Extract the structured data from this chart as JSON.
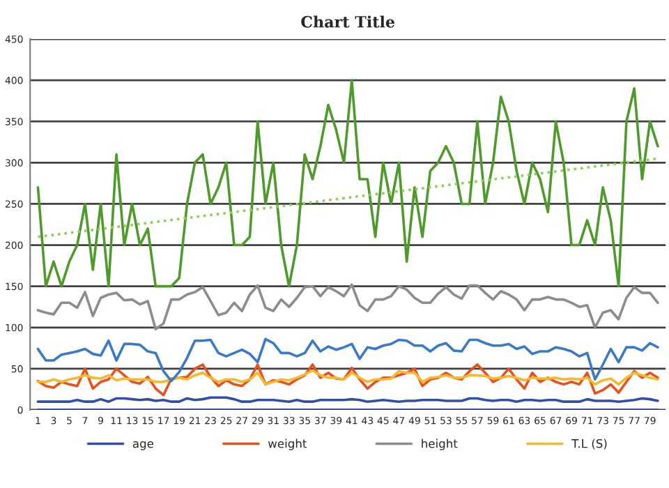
{
  "chart_data": {
    "type": "line",
    "title": "Chart Title",
    "x": [
      1,
      2,
      3,
      4,
      5,
      6,
      7,
      8,
      9,
      10,
      11,
      12,
      13,
      14,
      15,
      16,
      17,
      18,
      19,
      20,
      21,
      22,
      23,
      24,
      25,
      26,
      27,
      28,
      29,
      30,
      31,
      32,
      33,
      34,
      35,
      36,
      37,
      38,
      39,
      40,
      41,
      42,
      43,
      44,
      45,
      46,
      47,
      48,
      49,
      50,
      51,
      52,
      53,
      54,
      55,
      56,
      57,
      58,
      59,
      60,
      61,
      62,
      63,
      64,
      65,
      66,
      67,
      68,
      69,
      70,
      71,
      72,
      73,
      74,
      75,
      76,
      77,
      78,
      79,
      80
    ],
    "xlim": [
      0,
      81
    ],
    "xticks": [
      1,
      3,
      5,
      7,
      9,
      11,
      13,
      15,
      17,
      19,
      21,
      23,
      25,
      27,
      29,
      31,
      33,
      35,
      37,
      39,
      41,
      43,
      45,
      47,
      49,
      51,
      53,
      55,
      57,
      59,
      61,
      63,
      65,
      67,
      69,
      71,
      73,
      75,
      77,
      79
    ],
    "ylim": [
      0,
      450
    ],
    "yticks": [
      0,
      50,
      100,
      150,
      200,
      250,
      300,
      350,
      400,
      450
    ],
    "grid": "y",
    "legend": "bottom",
    "line_style": "solid",
    "marker": "none",
    "series": [
      {
        "name": "age",
        "color": "#2f4fa8",
        "values": [
          10,
          10,
          10,
          10,
          10,
          12,
          10,
          10,
          13,
          10,
          14,
          14,
          13,
          12,
          13,
          11,
          12,
          10,
          10,
          14,
          12,
          13,
          15,
          15,
          15,
          13,
          10,
          10,
          12,
          12,
          12,
          11,
          10,
          12,
          10,
          10,
          12,
          12,
          12,
          12,
          13,
          12,
          10,
          11,
          12,
          11,
          10,
          11,
          11,
          12,
          12,
          12,
          11,
          11,
          11,
          14,
          14,
          12,
          11,
          12,
          12,
          10,
          12,
          12,
          11,
          12,
          12,
          10,
          10,
          10,
          13,
          11,
          11,
          11,
          10,
          11,
          12,
          14,
          13,
          11
        ]
      },
      {
        "name": "weight",
        "color": "#e8501e",
        "values": [
          35,
          29,
          27,
          34,
          31,
          29,
          50,
          26,
          34,
          37,
          50,
          42,
          34,
          32,
          40,
          26,
          18,
          38,
          39,
          40,
          50,
          55,
          40,
          29,
          36,
          31,
          29,
          37,
          55,
          31,
          36,
          34,
          31,
          37,
          42,
          55,
          39,
          45,
          38,
          37,
          51,
          37,
          26,
          34,
          39,
          39,
          42,
          45,
          50,
          29,
          37,
          39,
          45,
          39,
          37,
          47,
          55,
          45,
          34,
          39,
          50,
          37,
          26,
          45,
          34,
          39,
          34,
          31,
          34,
          31,
          45,
          20,
          24,
          31,
          21,
          34,
          47,
          39,
          45,
          39
        ]
      },
      {
        "name": "height",
        "color": "#8c8c8c",
        "values": [
          121,
          118,
          116,
          130,
          130,
          124,
          143,
          114,
          136,
          140,
          142,
          133,
          134,
          128,
          132,
          98,
          105,
          134,
          134,
          140,
          143,
          149,
          132,
          115,
          118,
          130,
          120,
          140,
          151,
          124,
          120,
          134,
          125,
          136,
          149,
          150,
          138,
          149,
          144,
          138,
          152,
          127,
          120,
          134,
          134,
          138,
          150,
          146,
          136,
          130,
          130,
          141,
          149,
          140,
          135,
          151,
          151,
          142,
          134,
          144,
          140,
          134,
          121,
          134,
          134,
          137,
          134,
          134,
          130,
          125,
          127,
          100,
          118,
          121,
          110,
          136,
          149,
          142,
          142,
          130
        ]
      },
      {
        "name": "T.L (S)",
        "color": "#f5b82e",
        "values": [
          34,
          34,
          37,
          34,
          37,
          39,
          42,
          39,
          38,
          42,
          36,
          38,
          37,
          37,
          37,
          34,
          34,
          37,
          39,
          37,
          42,
          45,
          39,
          34,
          37,
          37,
          34,
          37,
          45,
          31,
          34,
          37,
          36,
          39,
          43,
          48,
          42,
          39,
          39,
          37,
          45,
          39,
          34,
          37,
          37,
          38,
          47,
          45,
          45,
          34,
          39,
          40,
          42,
          39,
          39,
          42,
          42,
          41,
          38,
          39,
          41,
          39,
          36,
          39,
          38,
          38,
          39,
          37,
          38,
          37,
          39,
          31,
          36,
          38,
          31,
          39,
          45,
          42,
          39,
          37
        ]
      },
      {
        "color": "#3a78c8",
        "values": [
          74,
          60,
          60,
          67,
          69,
          71,
          74,
          68,
          66,
          84,
          60,
          80,
          80,
          79,
          71,
          69,
          47,
          35,
          46,
          63,
          84,
          84,
          85,
          69,
          65,
          69,
          73,
          68,
          58,
          86,
          81,
          69,
          69,
          65,
          69,
          84,
          71,
          77,
          73,
          76,
          80,
          62,
          76,
          74,
          78,
          80,
          85,
          84,
          78,
          78,
          71,
          78,
          81,
          72,
          71,
          85,
          85,
          81,
          78,
          78,
          80,
          74,
          77,
          68,
          71,
          71,
          76,
          74,
          71,
          65,
          69,
          37,
          55,
          74,
          58,
          76,
          76,
          72,
          81,
          76
        ]
      },
      {
        "color": "#4e9a2a",
        "values": [
          270,
          150,
          180,
          150,
          180,
          200,
          250,
          170,
          250,
          150,
          310,
          200,
          250,
          200,
          220,
          150,
          150,
          150,
          160,
          250,
          300,
          310,
          250,
          270,
          300,
          200,
          200,
          210,
          350,
          250,
          300,
          200,
          150,
          200,
          310,
          280,
          320,
          370,
          340,
          300,
          400,
          280,
          280,
          210,
          300,
          250,
          300,
          180,
          270,
          210,
          290,
          300,
          320,
          300,
          250,
          250,
          350,
          250,
          300,
          380,
          350,
          290,
          250,
          300,
          280,
          240,
          350,
          300,
          200,
          200,
          230,
          200,
          270,
          230,
          150,
          350,
          390,
          280,
          350,
          320
        ]
      },
      {
        "color": "#8ecf5a",
        "line_style": "dotted",
        "x": [
          1,
          80
        ],
        "values": [
          210,
          305
        ]
      },
      {
        "color": "#2a3f9a",
        "values": [
          0,
          0,
          0,
          0,
          0,
          0,
          0,
          0,
          0,
          0,
          0,
          0,
          0,
          0,
          0,
          0,
          0,
          0,
          0,
          0,
          0,
          0,
          0,
          0,
          0,
          0,
          0,
          0,
          0,
          0,
          0,
          0,
          0,
          0,
          0,
          0,
          0,
          0,
          0,
          0,
          0,
          0,
          0,
          0,
          0,
          0,
          0,
          0,
          0,
          0,
          0,
          0,
          0,
          0,
          0,
          0,
          0,
          0,
          0,
          0,
          0,
          0,
          0,
          0,
          0,
          0,
          0,
          0,
          0,
          0,
          0,
          0,
          0,
          0,
          0,
          0,
          0,
          0,
          0,
          0
        ]
      }
    ]
  }
}
